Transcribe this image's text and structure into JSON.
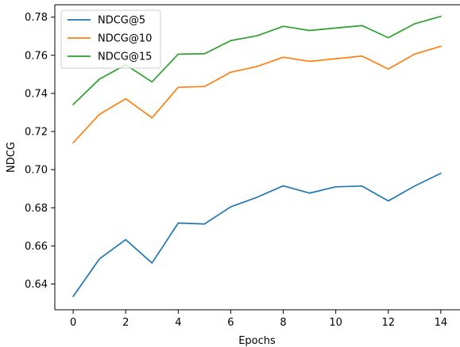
{
  "chart_data": {
    "type": "line",
    "title": "",
    "xlabel": "Epochs",
    "ylabel": "NDCG",
    "xlim": [
      -0.7,
      14.7
    ],
    "ylim": [
      0.6265,
      0.7865
    ],
    "xticks": [
      0,
      2,
      4,
      6,
      8,
      10,
      12,
      14
    ],
    "xtick_labels": [
      "0",
      "2",
      "4",
      "6",
      "8",
      "10",
      "12",
      "14"
    ],
    "yticks": [
      0.64,
      0.66,
      0.68,
      0.7,
      0.72,
      0.74,
      0.76,
      0.78
    ],
    "ytick_labels": [
      "0.64",
      "0.66",
      "0.68",
      "0.70",
      "0.72",
      "0.74",
      "0.76",
      "0.78"
    ],
    "grid": false,
    "legend_position": "upper-left",
    "x": [
      0,
      1,
      2,
      3,
      4,
      5,
      6,
      7,
      8,
      9,
      10,
      11,
      12,
      13,
      14
    ],
    "series": [
      {
        "name": "NDCG@5",
        "color": "#1f77b4",
        "values": [
          0.6335,
          0.6532,
          0.6633,
          0.651,
          0.672,
          0.6715,
          0.6805,
          0.6855,
          0.6915,
          0.6877,
          0.691,
          0.6914,
          0.6836,
          0.6914,
          0.6981
        ]
      },
      {
        "name": "NDCG@10",
        "color": "#ff7f0e",
        "values": [
          0.7141,
          0.729,
          0.7372,
          0.7272,
          0.7432,
          0.7436,
          0.7511,
          0.7541,
          0.759,
          0.7568,
          0.7582,
          0.7596,
          0.7528,
          0.7606,
          0.7647
        ]
      },
      {
        "name": "NDCG@15",
        "color": "#2ca02c",
        "values": [
          0.7342,
          0.7475,
          0.755,
          0.746,
          0.7606,
          0.7608,
          0.7677,
          0.7702,
          0.7752,
          0.773,
          0.7743,
          0.7756,
          0.7692,
          0.7765,
          0.7804
        ]
      }
    ]
  }
}
